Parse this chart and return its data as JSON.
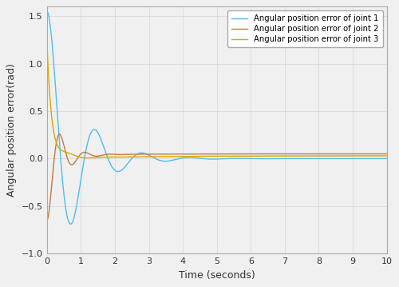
{
  "xlabel": "Time (seconds)",
  "ylabel": "Angular position error(rad)",
  "xlim": [
    0,
    10
  ],
  "ylim": [
    -1,
    1.6
  ],
  "yticks": [
    -1,
    -0.5,
    0,
    0.5,
    1,
    1.5
  ],
  "xticks": [
    0,
    1,
    2,
    3,
    4,
    5,
    6,
    7,
    8,
    9,
    10
  ],
  "legend": [
    "Angular position error of joint 1",
    "Angular position error of joint 2",
    "Angular position error of joint 3"
  ],
  "colors": {
    "joint1": "#4DBEEE",
    "joint2": "#C27B3E",
    "joint3": "#D4AA00"
  },
  "background": "#F0F0F0",
  "grid_color": "#DADADA",
  "linewidth": 1.0
}
